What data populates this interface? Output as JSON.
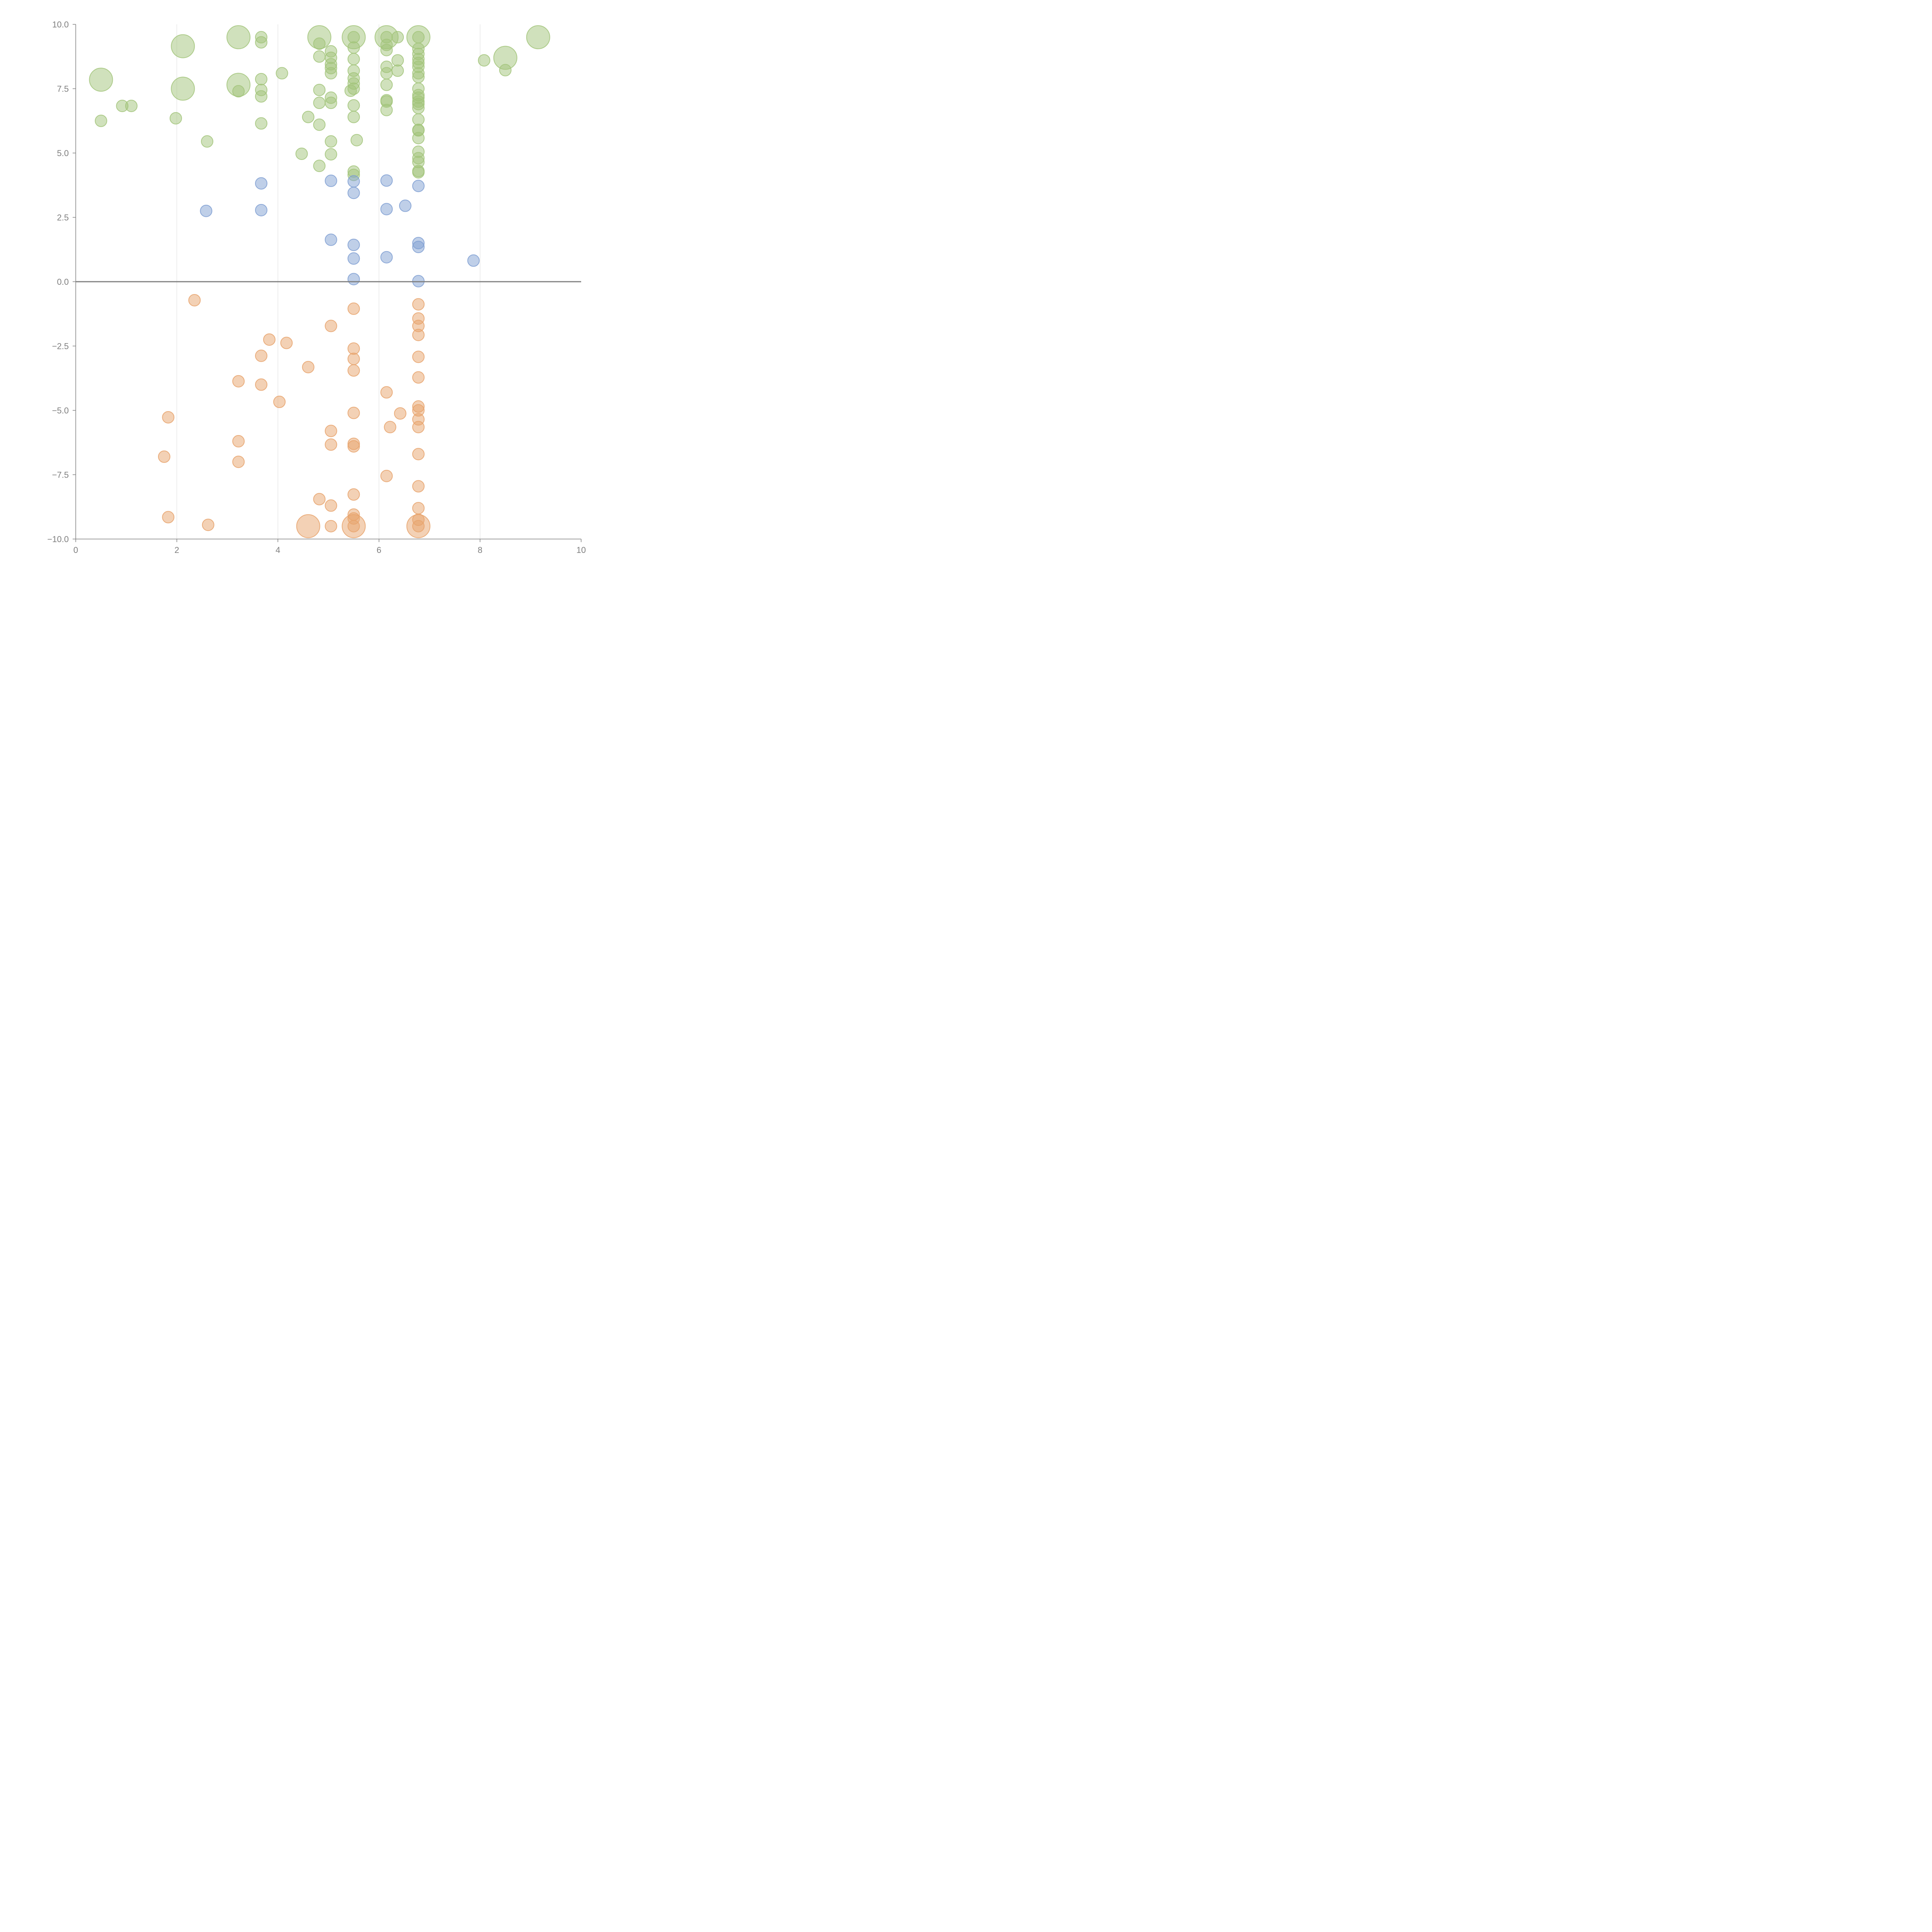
{
  "chart_data": {
    "type": "scatter",
    "title": "",
    "xlabel": "",
    "ylabel": "",
    "xlim": [
      0,
      10
    ],
    "ylim": [
      -10,
      10
    ],
    "x_ticks": [
      "0",
      "2",
      "4",
      "6",
      "8",
      "10"
    ],
    "y_ticks": [
      "10.0",
      "7.5",
      "5.0",
      "2.5",
      "0.0",
      "−2.5",
      "−5.0",
      "−7.5",
      "−10.0"
    ],
    "x_gridlines": [
      2,
      4,
      6,
      8
    ],
    "zero_line": 0,
    "legend": "none",
    "colors": {
      "green": "#a2c47a",
      "blue": "#7f9fd2",
      "orange": "#e8a36c",
      "axis": "#808080",
      "grid": "#dcdcdc"
    },
    "series": [
      {
        "color_key": "green",
        "points": [
          [
            0.5,
            7.85,
            3
          ],
          [
            0.5,
            6.25,
            1
          ],
          [
            0.92,
            6.83,
            1
          ],
          [
            1.1,
            6.83,
            1
          ],
          [
            1.98,
            6.35,
            1
          ],
          [
            2.12,
            9.15,
            3
          ],
          [
            2.12,
            7.5,
            3
          ],
          [
            2.6,
            5.45,
            1
          ],
          [
            3.22,
            9.5,
            3
          ],
          [
            3.22,
            7.65,
            3
          ],
          [
            3.22,
            7.4,
            1
          ],
          [
            3.67,
            9.5,
            1
          ],
          [
            3.67,
            9.3,
            1
          ],
          [
            3.67,
            7.87,
            1
          ],
          [
            3.67,
            7.45,
            1
          ],
          [
            3.67,
            7.2,
            1
          ],
          [
            3.67,
            6.15,
            1
          ],
          [
            4.08,
            8.1,
            1
          ],
          [
            4.47,
            4.97,
            1
          ],
          [
            4.6,
            6.4,
            1
          ],
          [
            4.82,
            9.5,
            3
          ],
          [
            4.82,
            9.25,
            1
          ],
          [
            4.82,
            8.75,
            1
          ],
          [
            4.82,
            7.45,
            1
          ],
          [
            4.82,
            6.95,
            1
          ],
          [
            4.82,
            6.1,
            1
          ],
          [
            4.82,
            4.5,
            1
          ],
          [
            5.05,
            8.95,
            1
          ],
          [
            5.05,
            8.7,
            1
          ],
          [
            5.05,
            8.45,
            1
          ],
          [
            5.05,
            8.3,
            1
          ],
          [
            5.05,
            8.1,
            1
          ],
          [
            5.05,
            7.15,
            1
          ],
          [
            5.05,
            6.95,
            1
          ],
          [
            5.05,
            5.45,
            1
          ],
          [
            5.05,
            4.95,
            1
          ],
          [
            5.5,
            9.5,
            3
          ],
          [
            5.5,
            9.5,
            1
          ],
          [
            5.5,
            9.1,
            1
          ],
          [
            5.5,
            8.65,
            1
          ],
          [
            5.5,
            8.2,
            1
          ],
          [
            5.5,
            7.9,
            1
          ],
          [
            5.5,
            7.7,
            1
          ],
          [
            5.5,
            7.5,
            1
          ],
          [
            5.44,
            7.42,
            1
          ],
          [
            5.5,
            6.85,
            1
          ],
          [
            5.5,
            6.4,
            1
          ],
          [
            5.56,
            5.5,
            1
          ],
          [
            5.5,
            4.28,
            1
          ],
          [
            5.5,
            4.15,
            1
          ],
          [
            6.15,
            9.5,
            3
          ],
          [
            6.15,
            9.5,
            1
          ],
          [
            6.15,
            9.2,
            1
          ],
          [
            6.15,
            9.0,
            1
          ],
          [
            6.15,
            8.35,
            1
          ],
          [
            6.15,
            8.1,
            1
          ],
          [
            6.15,
            7.65,
            1
          ],
          [
            6.15,
            7.05,
            1
          ],
          [
            6.15,
            7.0,
            1
          ],
          [
            6.15,
            6.67,
            1
          ],
          [
            6.37,
            9.5,
            1
          ],
          [
            6.37,
            8.6,
            1
          ],
          [
            6.37,
            8.2,
            1
          ],
          [
            6.78,
            9.5,
            3
          ],
          [
            6.78,
            9.5,
            1
          ],
          [
            6.78,
            9.05,
            1
          ],
          [
            6.78,
            8.85,
            1
          ],
          [
            6.78,
            8.65,
            1
          ],
          [
            6.78,
            8.5,
            1
          ],
          [
            6.78,
            8.35,
            1
          ],
          [
            6.78,
            8.1,
            1
          ],
          [
            6.78,
            7.95,
            1
          ],
          [
            6.78,
            7.5,
            1
          ],
          [
            6.78,
            7.25,
            1
          ],
          [
            6.78,
            7.15,
            1
          ],
          [
            6.78,
            7.0,
            1
          ],
          [
            6.78,
            6.9,
            1
          ],
          [
            6.78,
            6.75,
            1
          ],
          [
            6.78,
            6.3,
            1
          ],
          [
            6.78,
            5.9,
            1
          ],
          [
            6.78,
            5.88,
            1
          ],
          [
            6.78,
            5.58,
            1
          ],
          [
            6.78,
            5.05,
            1
          ],
          [
            6.78,
            4.8,
            1
          ],
          [
            6.78,
            4.65,
            1
          ],
          [
            6.78,
            4.3,
            1
          ],
          [
            6.78,
            4.25,
            1
          ],
          [
            8.08,
            8.6,
            1
          ],
          [
            8.5,
            8.7,
            3
          ],
          [
            8.5,
            8.22,
            1
          ],
          [
            9.15,
            9.5,
            3
          ]
        ]
      },
      {
        "color_key": "blue",
        "points": [
          [
            2.58,
            2.75,
            1
          ],
          [
            3.67,
            3.82,
            1
          ],
          [
            3.67,
            2.78,
            1
          ],
          [
            5.05,
            3.92,
            1
          ],
          [
            5.05,
            1.63,
            1
          ],
          [
            5.5,
            3.9,
            1
          ],
          [
            5.5,
            3.45,
            1
          ],
          [
            5.5,
            1.43,
            1
          ],
          [
            5.5,
            0.9,
            1
          ],
          [
            5.5,
            0.1,
            1
          ],
          [
            6.15,
            3.93,
            1
          ],
          [
            6.15,
            2.82,
            1
          ],
          [
            6.15,
            0.95,
            1
          ],
          [
            6.52,
            2.95,
            1
          ],
          [
            6.78,
            3.72,
            1
          ],
          [
            6.78,
            1.5,
            1
          ],
          [
            6.78,
            1.35,
            1
          ],
          [
            6.78,
            0.02,
            1
          ],
          [
            7.87,
            0.82,
            1
          ]
        ]
      },
      {
        "color_key": "orange",
        "points": [
          [
            2.35,
            -0.72,
            1
          ],
          [
            1.83,
            -5.27,
            1
          ],
          [
            1.75,
            -6.8,
            1
          ],
          [
            1.83,
            -9.15,
            1
          ],
          [
            2.62,
            -9.45,
            1
          ],
          [
            3.22,
            -3.87,
            1
          ],
          [
            3.22,
            -6.2,
            1
          ],
          [
            3.22,
            -7.0,
            1
          ],
          [
            3.67,
            -2.88,
            1
          ],
          [
            3.67,
            -4.0,
            1
          ],
          [
            3.83,
            -2.25,
            1
          ],
          [
            4.03,
            -4.67,
            1
          ],
          [
            4.17,
            -2.38,
            1
          ],
          [
            4.6,
            -3.32,
            1
          ],
          [
            4.6,
            -9.5,
            3
          ],
          [
            4.82,
            -8.45,
            1
          ],
          [
            5.05,
            -1.72,
            1
          ],
          [
            5.05,
            -5.8,
            1
          ],
          [
            5.05,
            -6.33,
            1
          ],
          [
            5.05,
            -8.7,
            1
          ],
          [
            5.05,
            -9.5,
            1
          ],
          [
            5.5,
            -1.05,
            1
          ],
          [
            5.5,
            -2.6,
            1
          ],
          [
            5.5,
            -3.0,
            1
          ],
          [
            5.5,
            -3.45,
            1
          ],
          [
            5.5,
            -5.1,
            1
          ],
          [
            5.5,
            -6.3,
            1
          ],
          [
            5.5,
            -6.4,
            1
          ],
          [
            5.5,
            -8.27,
            1
          ],
          [
            5.5,
            -9.05,
            1
          ],
          [
            5.5,
            -9.2,
            1
          ],
          [
            5.5,
            -9.5,
            3
          ],
          [
            5.5,
            -9.5,
            1
          ],
          [
            6.15,
            -4.3,
            1
          ],
          [
            6.15,
            -7.55,
            1
          ],
          [
            6.22,
            -5.65,
            1
          ],
          [
            6.42,
            -5.12,
            1
          ],
          [
            6.78,
            -0.88,
            1
          ],
          [
            6.78,
            -1.43,
            1
          ],
          [
            6.78,
            -1.72,
            1
          ],
          [
            6.78,
            -2.07,
            1
          ],
          [
            6.78,
            -2.92,
            1
          ],
          [
            6.78,
            -3.72,
            1
          ],
          [
            6.78,
            -4.85,
            1
          ],
          [
            6.78,
            -5.0,
            1
          ],
          [
            6.78,
            -5.35,
            1
          ],
          [
            6.78,
            -5.65,
            1
          ],
          [
            6.78,
            -6.7,
            1
          ],
          [
            6.78,
            -7.95,
            1
          ],
          [
            6.78,
            -8.8,
            1
          ],
          [
            6.78,
            -9.25,
            1
          ],
          [
            6.78,
            -9.5,
            3
          ],
          [
            6.78,
            -9.5,
            1
          ]
        ]
      }
    ]
  }
}
